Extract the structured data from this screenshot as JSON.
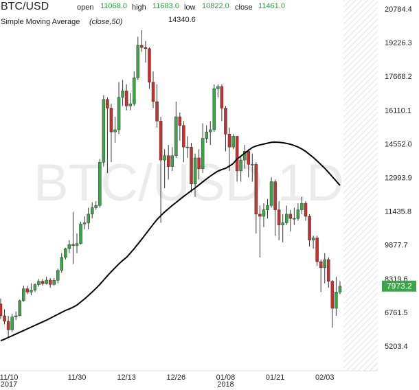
{
  "chart_data": {
    "type": "candlestick",
    "title": "BTC/USD",
    "watermark": "BTC/USD 1D",
    "legend": {
      "open_label": "open",
      "open": "11068.0",
      "high_label": "high",
      "high": "11683.0",
      "low_label": "low",
      "low": "10822.0",
      "close_label": "close",
      "close": "11461.0"
    },
    "indicator": {
      "name": "Simple Moving Average",
      "params": "(close,50)",
      "value": "14340.6",
      "color": "#000000",
      "values": [
        5450,
        5520,
        5600,
        5680,
        5760,
        5840,
        5920,
        6000,
        6080,
        6160,
        6240,
        6320,
        6400,
        6490,
        6580,
        6670,
        6760,
        6850,
        6920,
        7000,
        7100,
        7240,
        7380,
        7540,
        7700,
        7870,
        8050,
        8250,
        8450,
        8640,
        8820,
        9000,
        9160,
        9300,
        9500,
        9700,
        9920,
        10140,
        10370,
        10600,
        10830,
        11050,
        11230,
        11400,
        11550,
        11700,
        11840,
        11980,
        12120,
        12250,
        12380,
        12510,
        12650,
        12790,
        12930,
        13060,
        13180,
        13290,
        13360,
        13420,
        13520,
        13640,
        13850,
        13980,
        14120,
        14250,
        14380,
        14450,
        14500,
        14540,
        14580,
        14620,
        14630,
        14620,
        14600,
        14570,
        14530,
        14470,
        14400,
        14310,
        14200,
        14060,
        13920,
        13760,
        13590,
        13420,
        13230,
        13030,
        12830,
        12630
      ]
    },
    "categories": [
      "11/10",
      null,
      null,
      null,
      null,
      null,
      null,
      null,
      null,
      null,
      null,
      null,
      null,
      null,
      null,
      null,
      null,
      null,
      null,
      null,
      "11/30",
      null,
      null,
      null,
      null,
      null,
      null,
      null,
      null,
      null,
      null,
      null,
      null,
      "12/13",
      null,
      null,
      null,
      null,
      null,
      null,
      null,
      null,
      null,
      null,
      null,
      null,
      "12/26",
      null,
      null,
      null,
      null,
      null,
      null,
      null,
      null,
      null,
      null,
      null,
      null,
      "01/08",
      null,
      null,
      null,
      null,
      null,
      null,
      null,
      null,
      null,
      null,
      null,
      null,
      "01/21",
      null,
      null,
      null,
      null,
      null,
      null,
      null,
      null,
      null,
      null,
      null,
      null,
      "02/03",
      null,
      null,
      null,
      null
    ],
    "year_labels": [
      "2017",
      null,
      null,
      null,
      null,
      null,
      null,
      null,
      null,
      null,
      null,
      null,
      null,
      null,
      null,
      null,
      null,
      null,
      null,
      null,
      null,
      null,
      null,
      null,
      null,
      null,
      null,
      null,
      null,
      null,
      null,
      null,
      null,
      null,
      null,
      null,
      null,
      null,
      null,
      null,
      null,
      null,
      null,
      null,
      null,
      null,
      null,
      null,
      null,
      null,
      null,
      null,
      null,
      null,
      null,
      null,
      null,
      null,
      null,
      "2018",
      null,
      null,
      null,
      null,
      null,
      null,
      null,
      null,
      null,
      null,
      null,
      null,
      null,
      null,
      null,
      null,
      null,
      null,
      null,
      null,
      null,
      null,
      null,
      null,
      null,
      null,
      null,
      null,
      null,
      null
    ],
    "open": [
      7150,
      6600,
      6350,
      5950,
      6550,
      6600,
      7300,
      7850,
      7700,
      7790,
      8040,
      8200,
      8090,
      8250,
      8050,
      8240,
      8700,
      9300,
      9700,
      9900,
      9850,
      9940,
      10850,
      10900,
      11300,
      11600,
      11700,
      13700,
      16600,
      16200,
      15100,
      15200,
      16700,
      17000,
      16300,
      16400,
      17600,
      19100,
      19000,
      18950,
      17400,
      16500,
      15600,
      13800,
      14000,
      13500,
      14000,
      15800,
      15400,
      14400,
      14400,
      12700,
      13900,
      13400,
      14800,
      15100,
      15200,
      17100,
      17200,
      16200,
      15000,
      14400,
      14900,
      13300,
      13800,
      14200,
      13600,
      13600,
      11300,
      11200,
      11500,
      11700,
      12800,
      11500,
      10800,
      10900,
      11300,
      11100,
      11100,
      11500,
      11800,
      11200,
      10100,
      10200,
      9100,
      8830,
      9200,
      8200,
      6950,
      7700
    ],
    "high": [
      7400,
      6900,
      6600,
      6700,
      6800,
      7350,
      8000,
      7990,
      8100,
      8100,
      8300,
      8300,
      8400,
      8350,
      8350,
      8780,
      9500,
      9750,
      10100,
      11400,
      10400,
      10950,
      11200,
      11600,
      11850,
      11900,
      13850,
      16800,
      16700,
      16400,
      15800,
      17400,
      17500,
      17300,
      16900,
      17900,
      19500,
      19800,
      19300,
      19000,
      17900,
      17300,
      15800,
      14300,
      14500,
      14400,
      16500,
      16000,
      15600,
      14900,
      14600,
      14100,
      14300,
      15500,
      15400,
      15600,
      17300,
      17300,
      17300,
      16300,
      15300,
      15000,
      14900,
      14000,
      14500,
      14300,
      14100,
      13700,
      11700,
      11800,
      12000,
      13000,
      12900,
      11900,
      11300,
      11700,
      11500,
      11600,
      11800,
      12100,
      11900,
      11300,
      10300,
      10300,
      9200,
      9500,
      9300,
      8250,
      8400,
      8200
    ],
    "low": [
      6450,
      6200,
      5600,
      5850,
      6400,
      6600,
      7250,
      7600,
      7550,
      7700,
      7950,
      8000,
      8050,
      7900,
      8000,
      8100,
      8600,
      9200,
      9500,
      9000,
      9500,
      9900,
      10600,
      10600,
      11100,
      11500,
      11600,
      13500,
      13200,
      13700,
      14600,
      15000,
      16300,
      16100,
      16100,
      16300,
      17500,
      18800,
      18300,
      17100,
      16200,
      15300,
      10900,
      12500,
      12900,
      13300,
      13900,
      14700,
      13700,
      13900,
      12300,
      12100,
      12900,
      13200,
      14600,
      14500,
      15100,
      16700,
      15600,
      14200,
      13300,
      14300,
      12800,
      12800,
      13400,
      13000,
      12800,
      10400,
      9300,
      10700,
      11100,
      11600,
      10300,
      10100,
      10000,
      10800,
      10500,
      10800,
      11000,
      11300,
      11000,
      9800,
      9700,
      8900,
      7700,
      8100,
      7900,
      6050,
      6600,
      7600
    ],
    "close": [
      6600,
      6350,
      5950,
      6550,
      6600,
      7300,
      7850,
      7700,
      7790,
      8040,
      8200,
      8090,
      8250,
      8050,
      8240,
      8700,
      9300,
      9700,
      9900,
      9850,
      9940,
      10850,
      10900,
      11300,
      11600,
      11700,
      13700,
      16600,
      16200,
      15100,
      15200,
      16700,
      17000,
      16300,
      16400,
      17600,
      19100,
      19000,
      18950,
      17400,
      16500,
      15600,
      13800,
      14000,
      13500,
      14000,
      15800,
      15400,
      14400,
      14400,
      12700,
      13900,
      13400,
      14800,
      15100,
      15200,
      17100,
      17200,
      16200,
      15000,
      14400,
      14900,
      13300,
      13800,
      14200,
      13600,
      13600,
      11300,
      11200,
      11500,
      11700,
      12800,
      11500,
      10800,
      10900,
      11300,
      11100,
      11100,
      11500,
      11800,
      11200,
      10100,
      10200,
      9100,
      8830,
      9200,
      8200,
      6950,
      7700,
      7973.2
    ],
    "up_color": "#3aa648",
    "down_color": "#c8302c",
    "ylim": [
      4061,
      21197
    ],
    "yticks": [
      20784.4,
      19226.3,
      17668.2,
      16110.1,
      {
        "value": 14552,
        "label": "14552.0"
      },
      12993.9,
      11435.8,
      9877.7,
      8319.6,
      6761.5,
      5203.4
    ]
  }
}
